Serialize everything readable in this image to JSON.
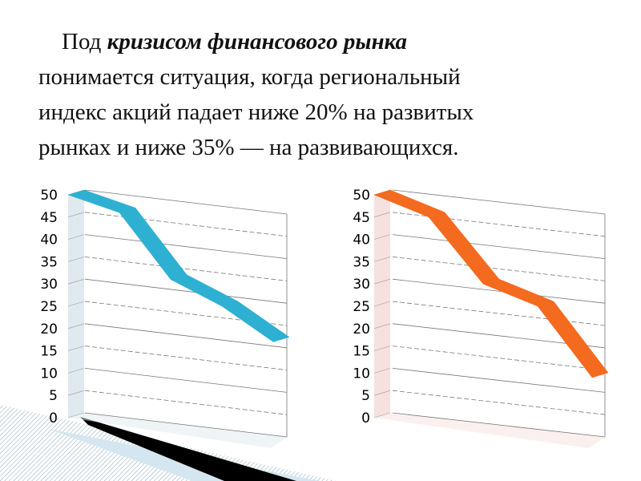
{
  "slide": {
    "text_prefix": "Под ",
    "text_bold": "кризисом финансового рынка",
    "text_line2": "понимается ситуация, когда региональный",
    "text_line3": "индекс акций падает ниже 20% на развитых",
    "text_line4": "рынках и ниже 35% — на развивающихся."
  },
  "chart_data": [
    {
      "type": "line",
      "style": "3d-ribbon",
      "color": "#2eb0d3",
      "wall_color": "#dfe9ee",
      "ylim": [
        0,
        50
      ],
      "yticks": [
        "0",
        "5",
        "10",
        "15",
        "20",
        "25",
        "30",
        "35",
        "40",
        "45",
        "50"
      ],
      "grid": true,
      "x": [
        1,
        2,
        3,
        4,
        5
      ],
      "values": [
        50,
        46,
        31,
        25,
        17
      ]
    },
    {
      "type": "line",
      "style": "3d-ribbon",
      "color": "#f46a1f",
      "wall_color": "#f6e1de",
      "ylim": [
        0,
        50
      ],
      "yticks": [
        "0",
        "5",
        "10",
        "15",
        "20",
        "25",
        "30",
        "35",
        "40",
        "45",
        "50"
      ],
      "grid": true,
      "x": [
        1,
        2,
        3,
        4,
        5
      ],
      "values": [
        50,
        45,
        30,
        25,
        9
      ]
    }
  ]
}
